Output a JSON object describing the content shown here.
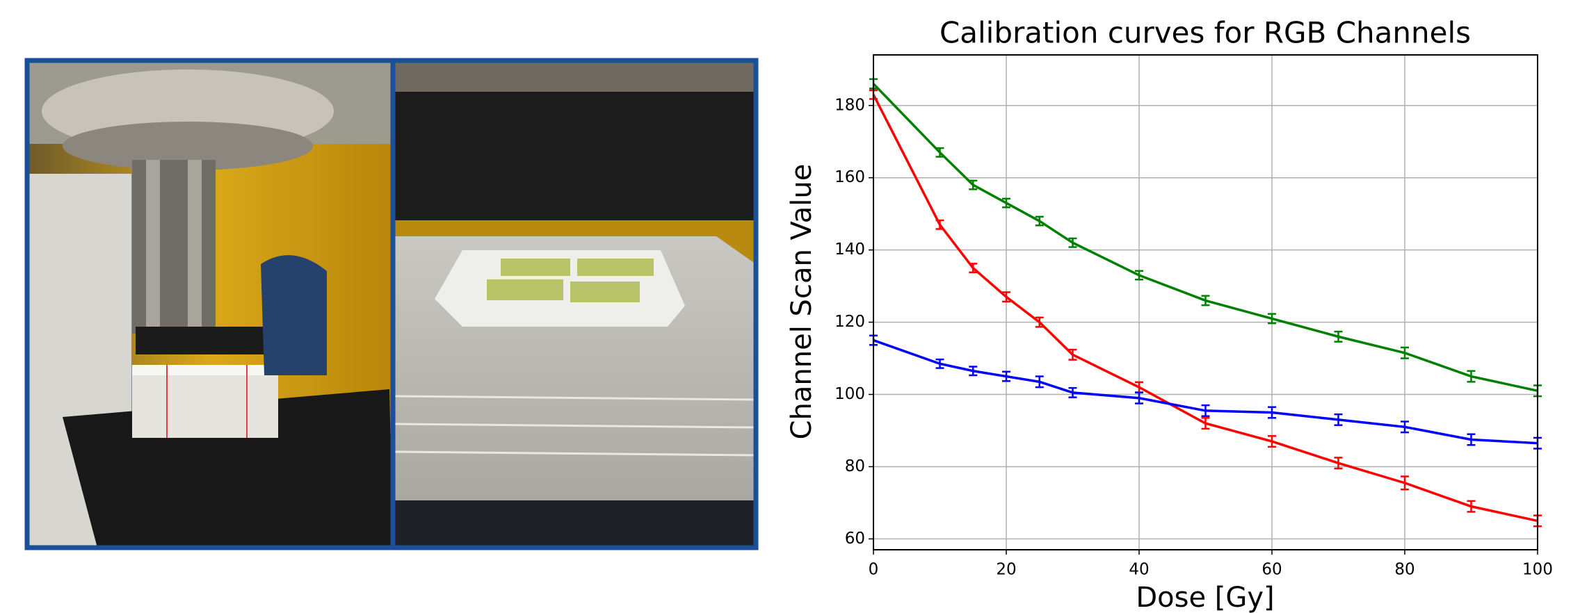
{
  "chart_data": {
    "type": "line",
    "title": "Calibration curves for RGB Channels",
    "x_label": "Dose [Gy]",
    "y_label": "Channel Scan Value",
    "x": [
      0,
      10,
      15,
      20,
      25,
      30,
      40,
      50,
      60,
      70,
      80,
      90,
      100
    ],
    "series": [
      {
        "color": "#008000",
        "values": [
          186,
          167,
          158,
          153,
          148,
          142,
          133,
          126,
          121,
          116,
          111.5,
          105,
          101
        ],
        "errors": [
          1.3,
          1.2,
          1.2,
          1.2,
          1.2,
          1.2,
          1.2,
          1.3,
          1.3,
          1.4,
          1.5,
          1.5,
          1.5
        ]
      },
      {
        "color": "#ff0000",
        "values": [
          183,
          147,
          135,
          127,
          120,
          111,
          102,
          92,
          87,
          81,
          75.5,
          69,
          65
        ],
        "errors": [
          1.2,
          1.2,
          1.2,
          1.3,
          1.3,
          1.4,
          1.4,
          1.5,
          1.5,
          1.5,
          1.8,
          1.5,
          1.5
        ]
      },
      {
        "color": "#0000ff",
        "values": [
          115,
          108.5,
          106.5,
          105,
          103.5,
          100.5,
          99,
          95.5,
          95,
          93,
          91,
          87.5,
          86.5
        ],
        "errors": [
          1.3,
          1.2,
          1.2,
          1.3,
          1.5,
          1.3,
          1.5,
          1.5,
          1.5,
          1.5,
          1.5,
          1.5,
          1.5
        ]
      }
    ],
    "xlim": [
      0,
      100
    ],
    "xticks": [
      0,
      20,
      40,
      60,
      80,
      100
    ],
    "ylim": [
      57,
      194
    ],
    "yticks": [
      60,
      80,
      100,
      120,
      140,
      160,
      180
    ],
    "grid": true
  }
}
